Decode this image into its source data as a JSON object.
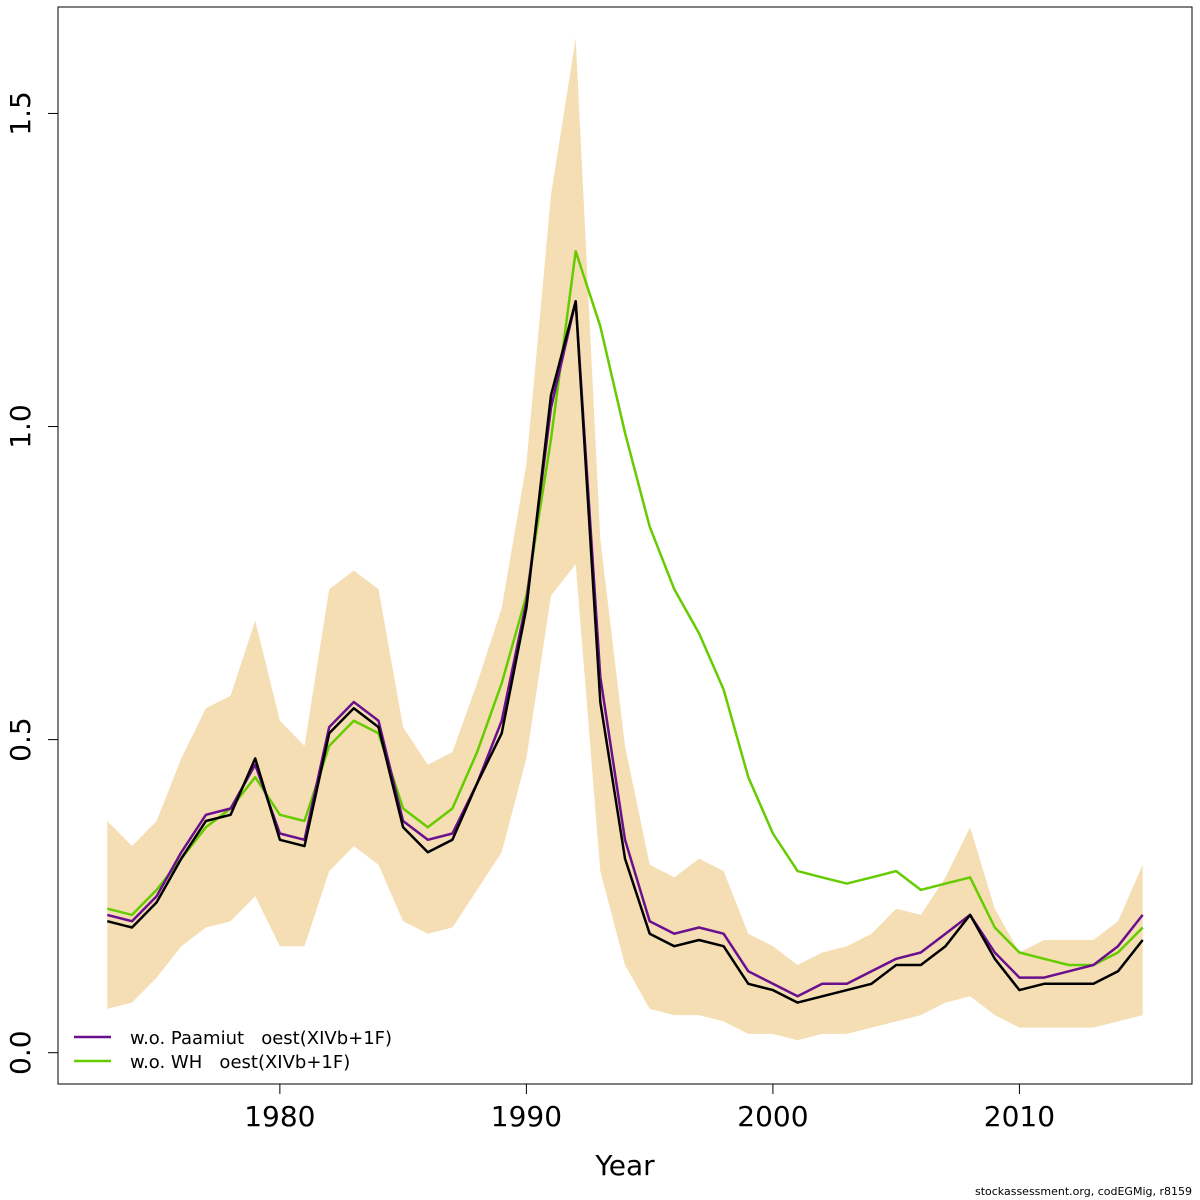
{
  "chart_data": {
    "type": "line",
    "title": "",
    "xlabel": "Year",
    "ylabel": "",
    "xlim": [
      1971,
      2017
    ],
    "ylim": [
      -0.05,
      1.67
    ],
    "x_ticks": [
      1980,
      1990,
      2000,
      2010
    ],
    "x_tick_labels": [
      "1980",
      "1990",
      "2000",
      "2010"
    ],
    "y_ticks": [
      0.0,
      0.5,
      1.0,
      1.5
    ],
    "y_tick_labels": [
      "0.0",
      "0.5",
      "1.0",
      "1.5"
    ],
    "grid": false,
    "legend_position": "bottom-left",
    "years": [
      1973,
      1974,
      1975,
      1976,
      1977,
      1978,
      1979,
      1980,
      1981,
      1982,
      1983,
      1984,
      1985,
      1986,
      1987,
      1988,
      1989,
      1990,
      1991,
      1992,
      1993,
      1994,
      1995,
      1996,
      1997,
      1998,
      1999,
      2000,
      2001,
      2002,
      2003,
      2004,
      2005,
      2006,
      2007,
      2008,
      2009,
      2010,
      2011,
      2012,
      2013,
      2014,
      2015
    ],
    "band": {
      "color": "#F5DEB3",
      "upper": [
        0.37,
        0.33,
        0.37,
        0.47,
        0.55,
        0.57,
        0.69,
        0.53,
        0.49,
        0.74,
        0.77,
        0.74,
        0.52,
        0.46,
        0.48,
        0.59,
        0.71,
        0.94,
        1.37,
        1.62,
        0.82,
        0.49,
        0.3,
        0.28,
        0.31,
        0.29,
        0.19,
        0.17,
        0.14,
        0.16,
        0.17,
        0.19,
        0.23,
        0.22,
        0.28,
        0.36,
        0.23,
        0.16,
        0.18,
        0.18,
        0.18,
        0.21,
        0.3
      ],
      "lower": [
        0.07,
        0.08,
        0.12,
        0.17,
        0.2,
        0.21,
        0.25,
        0.17,
        0.17,
        0.29,
        0.33,
        0.3,
        0.21,
        0.19,
        0.2,
        0.26,
        0.32,
        0.47,
        0.73,
        0.78,
        0.29,
        0.14,
        0.07,
        0.06,
        0.06,
        0.05,
        0.03,
        0.03,
        0.02,
        0.03,
        0.03,
        0.04,
        0.05,
        0.06,
        0.08,
        0.09,
        0.06,
        0.04,
        0.04,
        0.04,
        0.04,
        0.05,
        0.06
      ]
    },
    "series": [
      {
        "color": "#000000",
        "values": [
          0.21,
          0.2,
          0.24,
          0.31,
          0.37,
          0.38,
          0.47,
          0.34,
          0.33,
          0.51,
          0.55,
          0.52,
          0.36,
          0.32,
          0.34,
          0.43,
          0.51,
          0.71,
          1.05,
          1.2,
          0.56,
          0.31,
          0.19,
          0.17,
          0.18,
          0.17,
          0.11,
          0.1,
          0.08,
          0.09,
          0.1,
          0.11,
          0.14,
          0.14,
          0.17,
          0.22,
          0.15,
          0.1,
          0.11,
          0.11,
          0.11,
          0.13,
          0.18
        ]
      },
      {
        "name": "w.o. Paamiut   oest(XIVb+1F)",
        "color": "#6A0F8E",
        "values": [
          0.22,
          0.21,
          0.25,
          0.32,
          0.38,
          0.39,
          0.46,
          0.35,
          0.34,
          0.52,
          0.56,
          0.53,
          0.37,
          0.34,
          0.35,
          0.43,
          0.53,
          0.72,
          1.03,
          1.2,
          0.6,
          0.34,
          0.21,
          0.19,
          0.2,
          0.19,
          0.13,
          0.11,
          0.09,
          0.11,
          0.11,
          0.13,
          0.15,
          0.16,
          0.19,
          0.22,
          0.16,
          0.12,
          0.12,
          0.13,
          0.14,
          0.17,
          0.22
        ]
      },
      {
        "name": "w.o. WH   oest(XIVb+1F)",
        "color": "#66CC00",
        "values": [
          0.23,
          0.22,
          0.26,
          0.31,
          0.36,
          0.39,
          0.44,
          0.38,
          0.37,
          0.49,
          0.53,
          0.51,
          0.39,
          0.36,
          0.39,
          0.48,
          0.59,
          0.73,
          0.98,
          1.28,
          1.16,
          0.99,
          0.84,
          0.74,
          0.67,
          0.58,
          0.44,
          0.35,
          0.29,
          0.28,
          0.27,
          0.28,
          0.29,
          0.26,
          0.27,
          0.28,
          0.2,
          0.16,
          0.15,
          0.14,
          0.14,
          0.16,
          0.2
        ]
      }
    ]
  },
  "credit": "stockassessment.org, codEGMig, r8159"
}
